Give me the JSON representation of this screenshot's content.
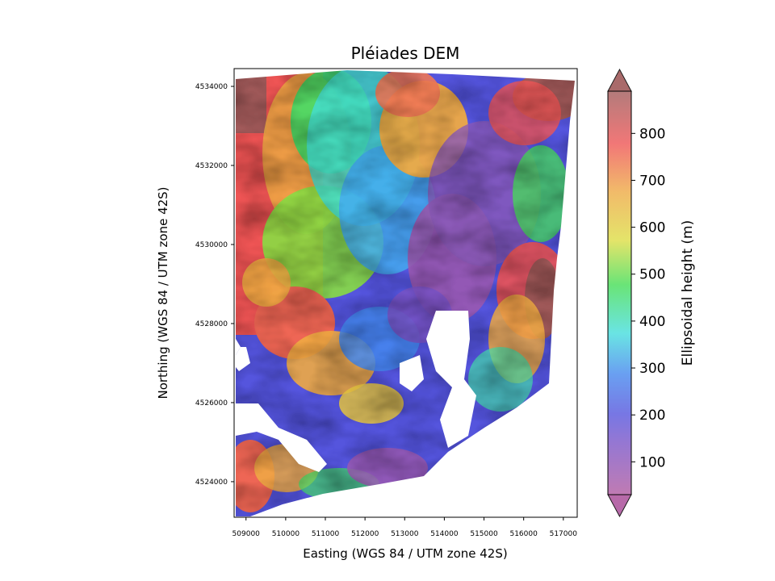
{
  "chart_data": {
    "type": "heatmap",
    "title": "Pléiades DEM",
    "xlabel": "Easting (WGS 84 / UTM zone 42S)",
    "ylabel": "Northing (WGS 84 / UTM zone 42S)",
    "xlim": [
      508700,
      517350
    ],
    "ylim": [
      4523100,
      4534450
    ],
    "xticks": [
      509000,
      510000,
      511000,
      512000,
      513000,
      514000,
      515000,
      516000,
      517000
    ],
    "xtick_labels": [
      "509000",
      "510000",
      "511000",
      "512000",
      "513000",
      "514000",
      "515000",
      "516000",
      "517000"
    ],
    "yticks": [
      4524000,
      4526000,
      4528000,
      4530000,
      4532000,
      4534000
    ],
    "ytick_labels": [
      "4524000",
      "4526000",
      "4528000",
      "4530000",
      "4532000",
      "4534000"
    ],
    "colorbar": {
      "label": "Ellipsoidal height (m)",
      "range": [
        30,
        890
      ],
      "extend": "both",
      "ticks": [
        100,
        200,
        300,
        400,
        500,
        600,
        700,
        800
      ],
      "tick_labels": [
        "100",
        "200",
        "300",
        "400",
        "500",
        "600",
        "700",
        "800"
      ],
      "colormap_stops": [
        "#b05aa0",
        "#5555dd",
        "#4488ee",
        "#44dddd",
        "#44dd55",
        "#dddd44",
        "#eeaa44",
        "#ee5555",
        "#a05a5a"
      ]
    },
    "grid": false
  }
}
